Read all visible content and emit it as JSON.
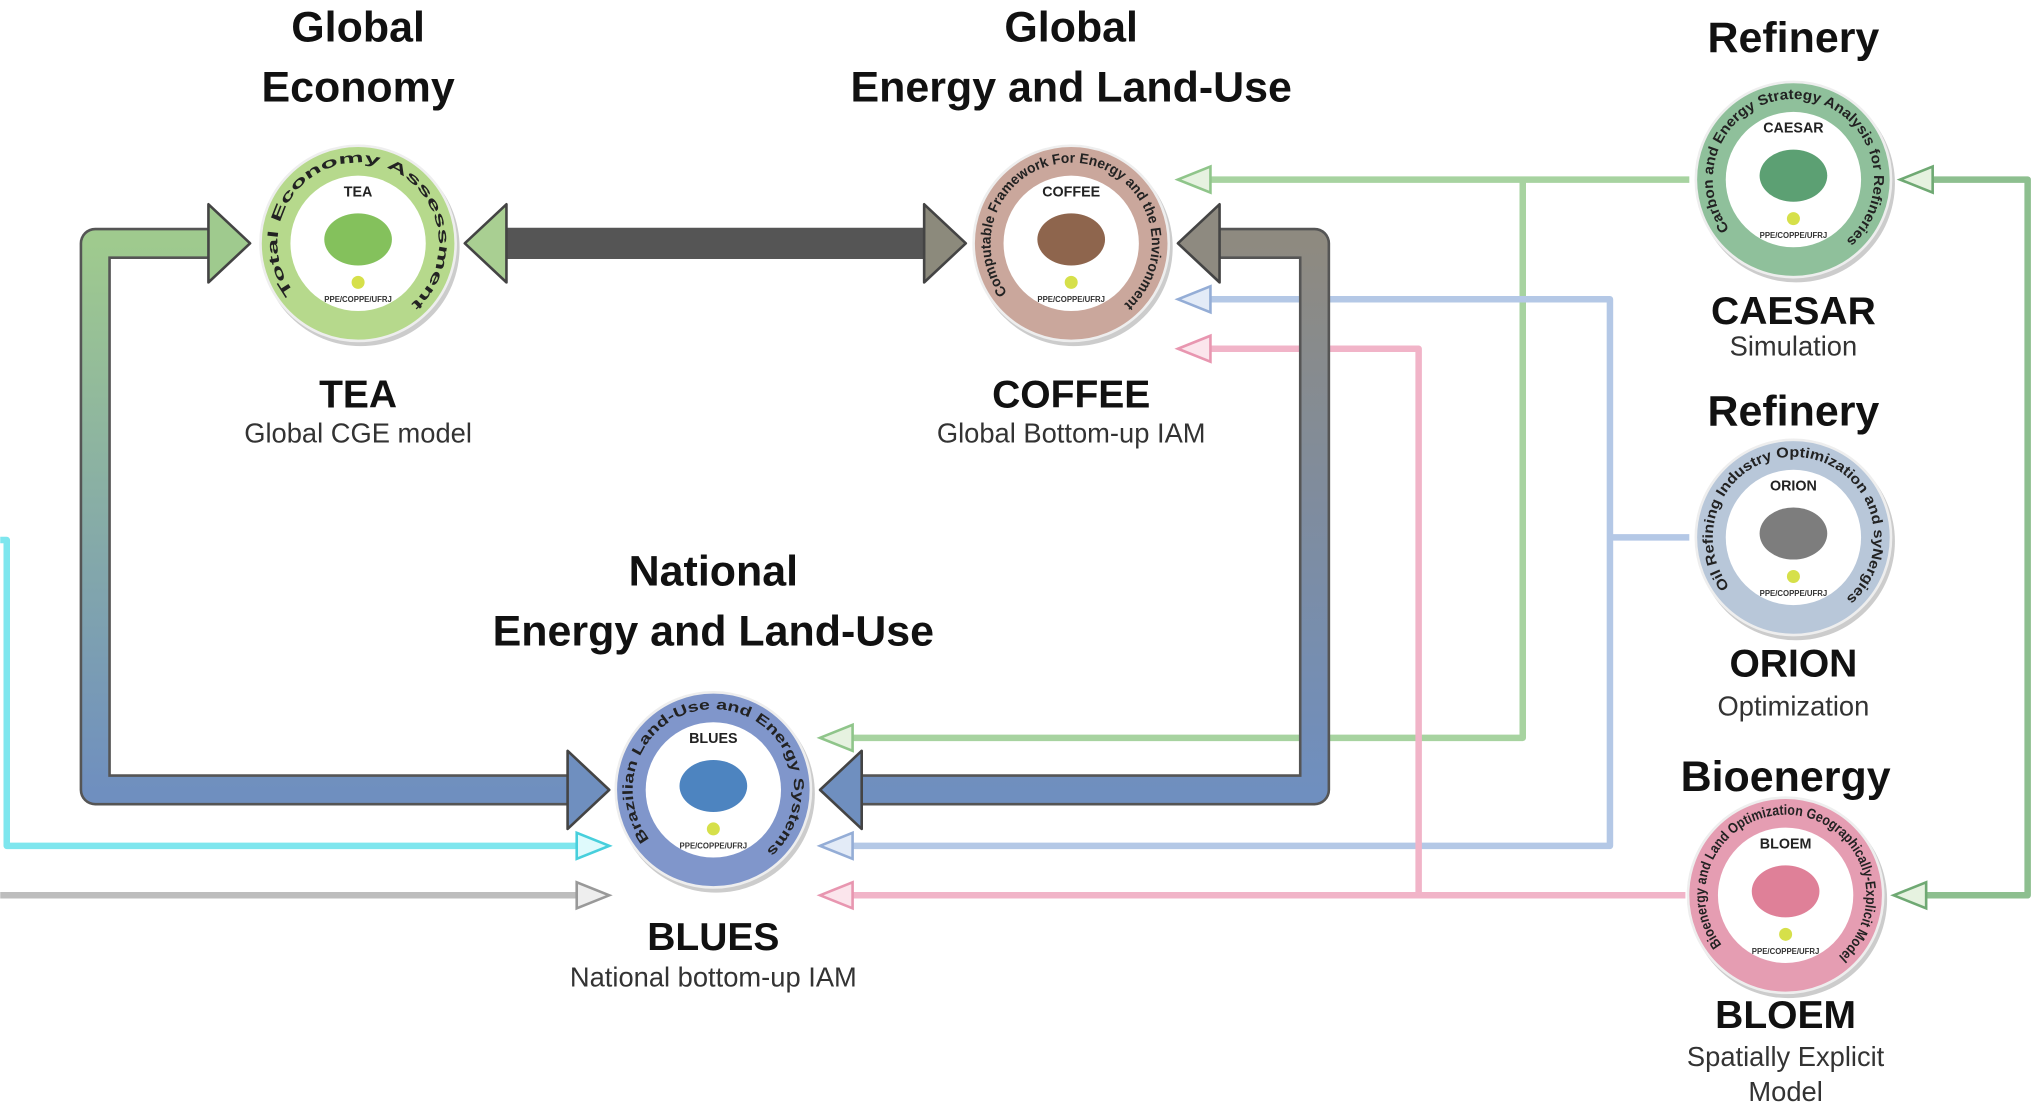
{
  "nodes": [
    {
      "heading": [
        "Global",
        "Economy"
      ],
      "name": "TEA",
      "subtitle": [
        "Global CGE model"
      ],
      "ring_text": "Total Economy Assessment",
      "logo_label": "TEA",
      "affiliation": "PPE/COPPE/UFRJ"
    },
    {
      "heading": [
        "Global",
        "Energy and Land-Use"
      ],
      "name": "COFFEE",
      "subtitle": [
        "Global Bottom-up IAM"
      ],
      "ring_text": "Computable Framework For Energy and the Environment",
      "logo_label": "COFFEE",
      "affiliation": "PPE/COPPE/UFRJ"
    },
    {
      "heading": [
        "National",
        "Energy and Land-Use"
      ],
      "name": "BLUES",
      "subtitle": [
        "National bottom-up IAM"
      ],
      "ring_text": "Brazilian Land-Use and Energy Systems",
      "logo_label": "BLUES",
      "affiliation": "PPE/COPPE/UFRJ"
    },
    {
      "heading": [
        "Refinery"
      ],
      "name": "CAESAR",
      "subtitle": [
        "Simulation"
      ],
      "ring_text": "Carbon and Energy Strategy Analysis for Refineries",
      "logo_label": "CAESAR",
      "affiliation": "PPE/COPPE/UFRJ"
    },
    {
      "heading": [
        "Refinery"
      ],
      "name": "ORION",
      "subtitle": [
        "Optimization"
      ],
      "ring_text": "Oil Refining Industry Optimization and syNergies",
      "logo_label": "ORION",
      "affiliation": "PPE/COPPE/UFRJ"
    },
    {
      "heading": [
        "Bioenergy"
      ],
      "name": "BLOEM",
      "subtitle": [
        "Spatially Explicit",
        "Model"
      ],
      "ring_text": "Bioenergy and Land Optimization Geographically-Explicit Model",
      "logo_label": "BLOEM",
      "affiliation": "PPE/COPPE/UFRJ"
    }
  ]
}
